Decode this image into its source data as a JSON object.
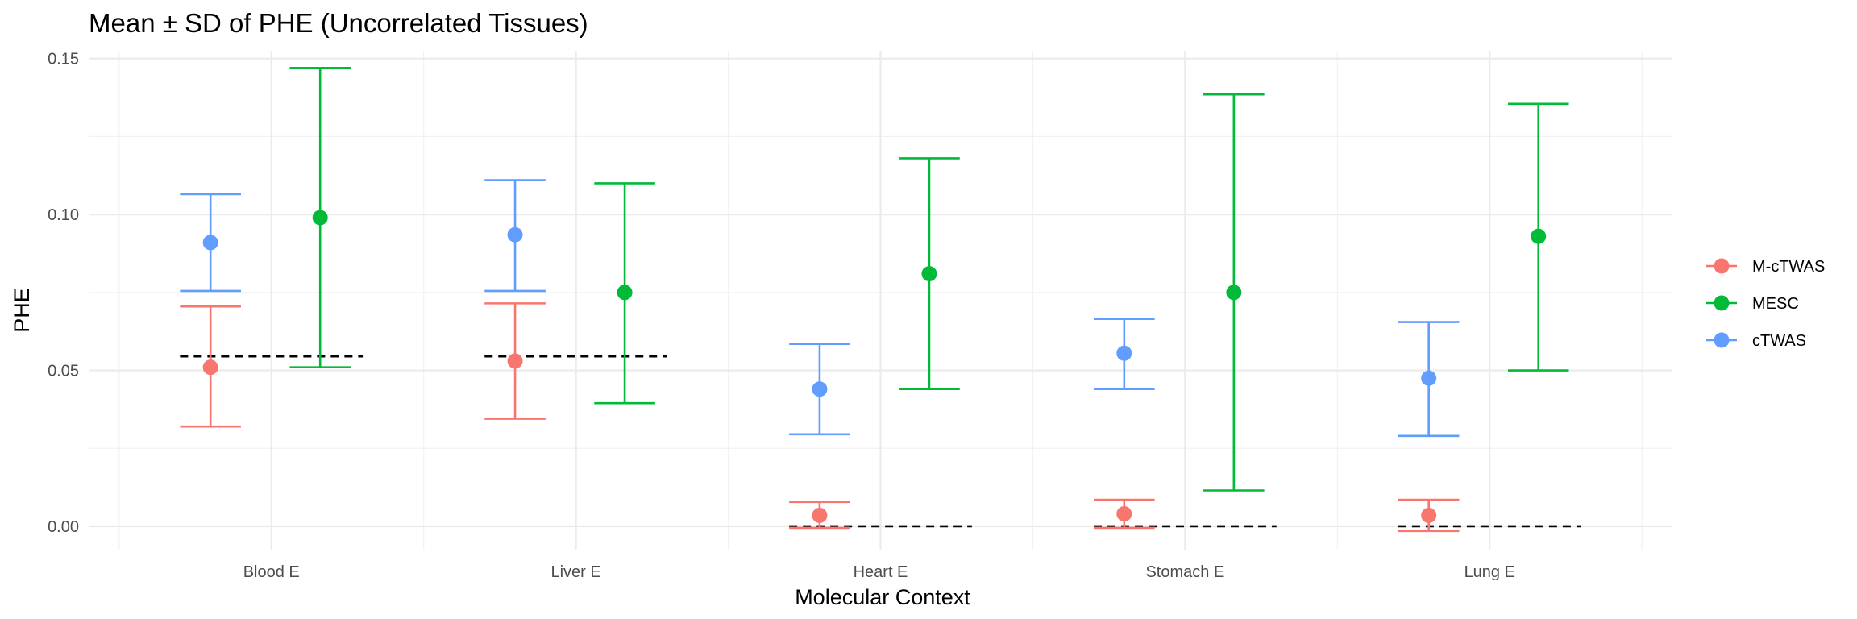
{
  "chart_data": {
    "type": "errorbar",
    "title": "Mean ± SD of PHE (Uncorrelated Tissues)",
    "xlabel": "Molecular Context",
    "ylabel": "PHE",
    "categories": [
      "Blood E",
      "Liver E",
      "Heart E",
      "Stomach E",
      "Lung E"
    ],
    "ylim": [
      -0.0075,
      0.1525
    ],
    "yticks": [
      0.0,
      0.05,
      0.1,
      0.15
    ],
    "ytick_labels": [
      "0.00",
      "0.05",
      "0.10",
      "0.15"
    ],
    "grid": true,
    "legend_position": "right",
    "series": [
      {
        "name": "M-cTWAS",
        "color": "#F8766D",
        "offset": -0.2,
        "mean": [
          0.051,
          0.053,
          0.0035,
          0.004,
          0.0035
        ],
        "lower": [
          0.032,
          0.0345,
          -0.0005,
          -0.0005,
          -0.0015
        ],
        "upper": [
          0.0705,
          0.0715,
          0.0078,
          0.0085,
          0.0085
        ]
      },
      {
        "name": "MESC",
        "color": "#00BA38",
        "offset": 0.16,
        "mean": [
          0.099,
          0.075,
          0.081,
          0.075,
          0.093
        ],
        "lower": [
          0.051,
          0.0395,
          0.044,
          0.0115,
          0.05
        ],
        "upper": [
          0.147,
          0.11,
          0.118,
          0.1385,
          0.1355
        ]
      },
      {
        "name": "cTWAS",
        "color": "#619CFF",
        "offset": -0.2,
        "mean": [
          0.091,
          0.0935,
          0.044,
          0.0555,
          0.0475
        ],
        "lower": [
          0.0755,
          0.0755,
          0.0295,
          0.044,
          0.029
        ],
        "upper": [
          0.1065,
          0.111,
          0.0585,
          0.0665,
          0.0655
        ]
      }
    ],
    "reference_lines": [
      0.0545,
      0.0545,
      0.0,
      0.0,
      0.0
    ]
  }
}
